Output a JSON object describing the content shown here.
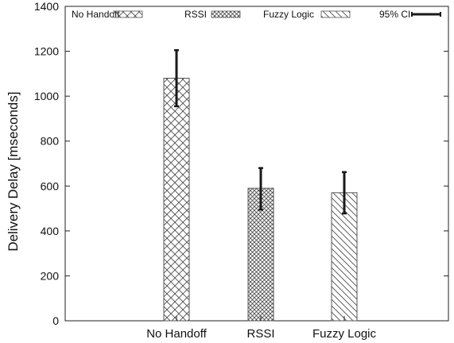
{
  "chart_data": {
    "type": "bar",
    "title": "",
    "xlabel": "",
    "ylabel": "Delivery Delay [mseconds]",
    "ylim": [
      0,
      1400
    ],
    "yticks": [
      0,
      200,
      400,
      600,
      800,
      1000,
      1200,
      1400
    ],
    "grid": false,
    "legend_position": "top",
    "categories": [
      "No Handoff",
      "RSSI",
      "Fuzzy Logic"
    ],
    "values": [
      1080,
      590,
      570
    ],
    "ci95": [
      [
        955,
        1205
      ],
      [
        495,
        680
      ],
      [
        478,
        662
      ]
    ],
    "patterns": [
      "crosshatch-wide",
      "crosshatch-dense",
      "diagonal"
    ],
    "legend": [
      {
        "label": "No Handoff",
        "pattern": "crosshatch-wide"
      },
      {
        "label": "RSSI",
        "pattern": "crosshatch-dense"
      },
      {
        "label": "Fuzzy Logic",
        "pattern": "diagonal"
      },
      {
        "label": "95% CI",
        "pattern": "errorbar"
      }
    ],
    "colors": {
      "bar_edge": "#555555",
      "hatch": "#444444",
      "errorbar": "#1a1a1a",
      "axis": "#222222"
    }
  }
}
